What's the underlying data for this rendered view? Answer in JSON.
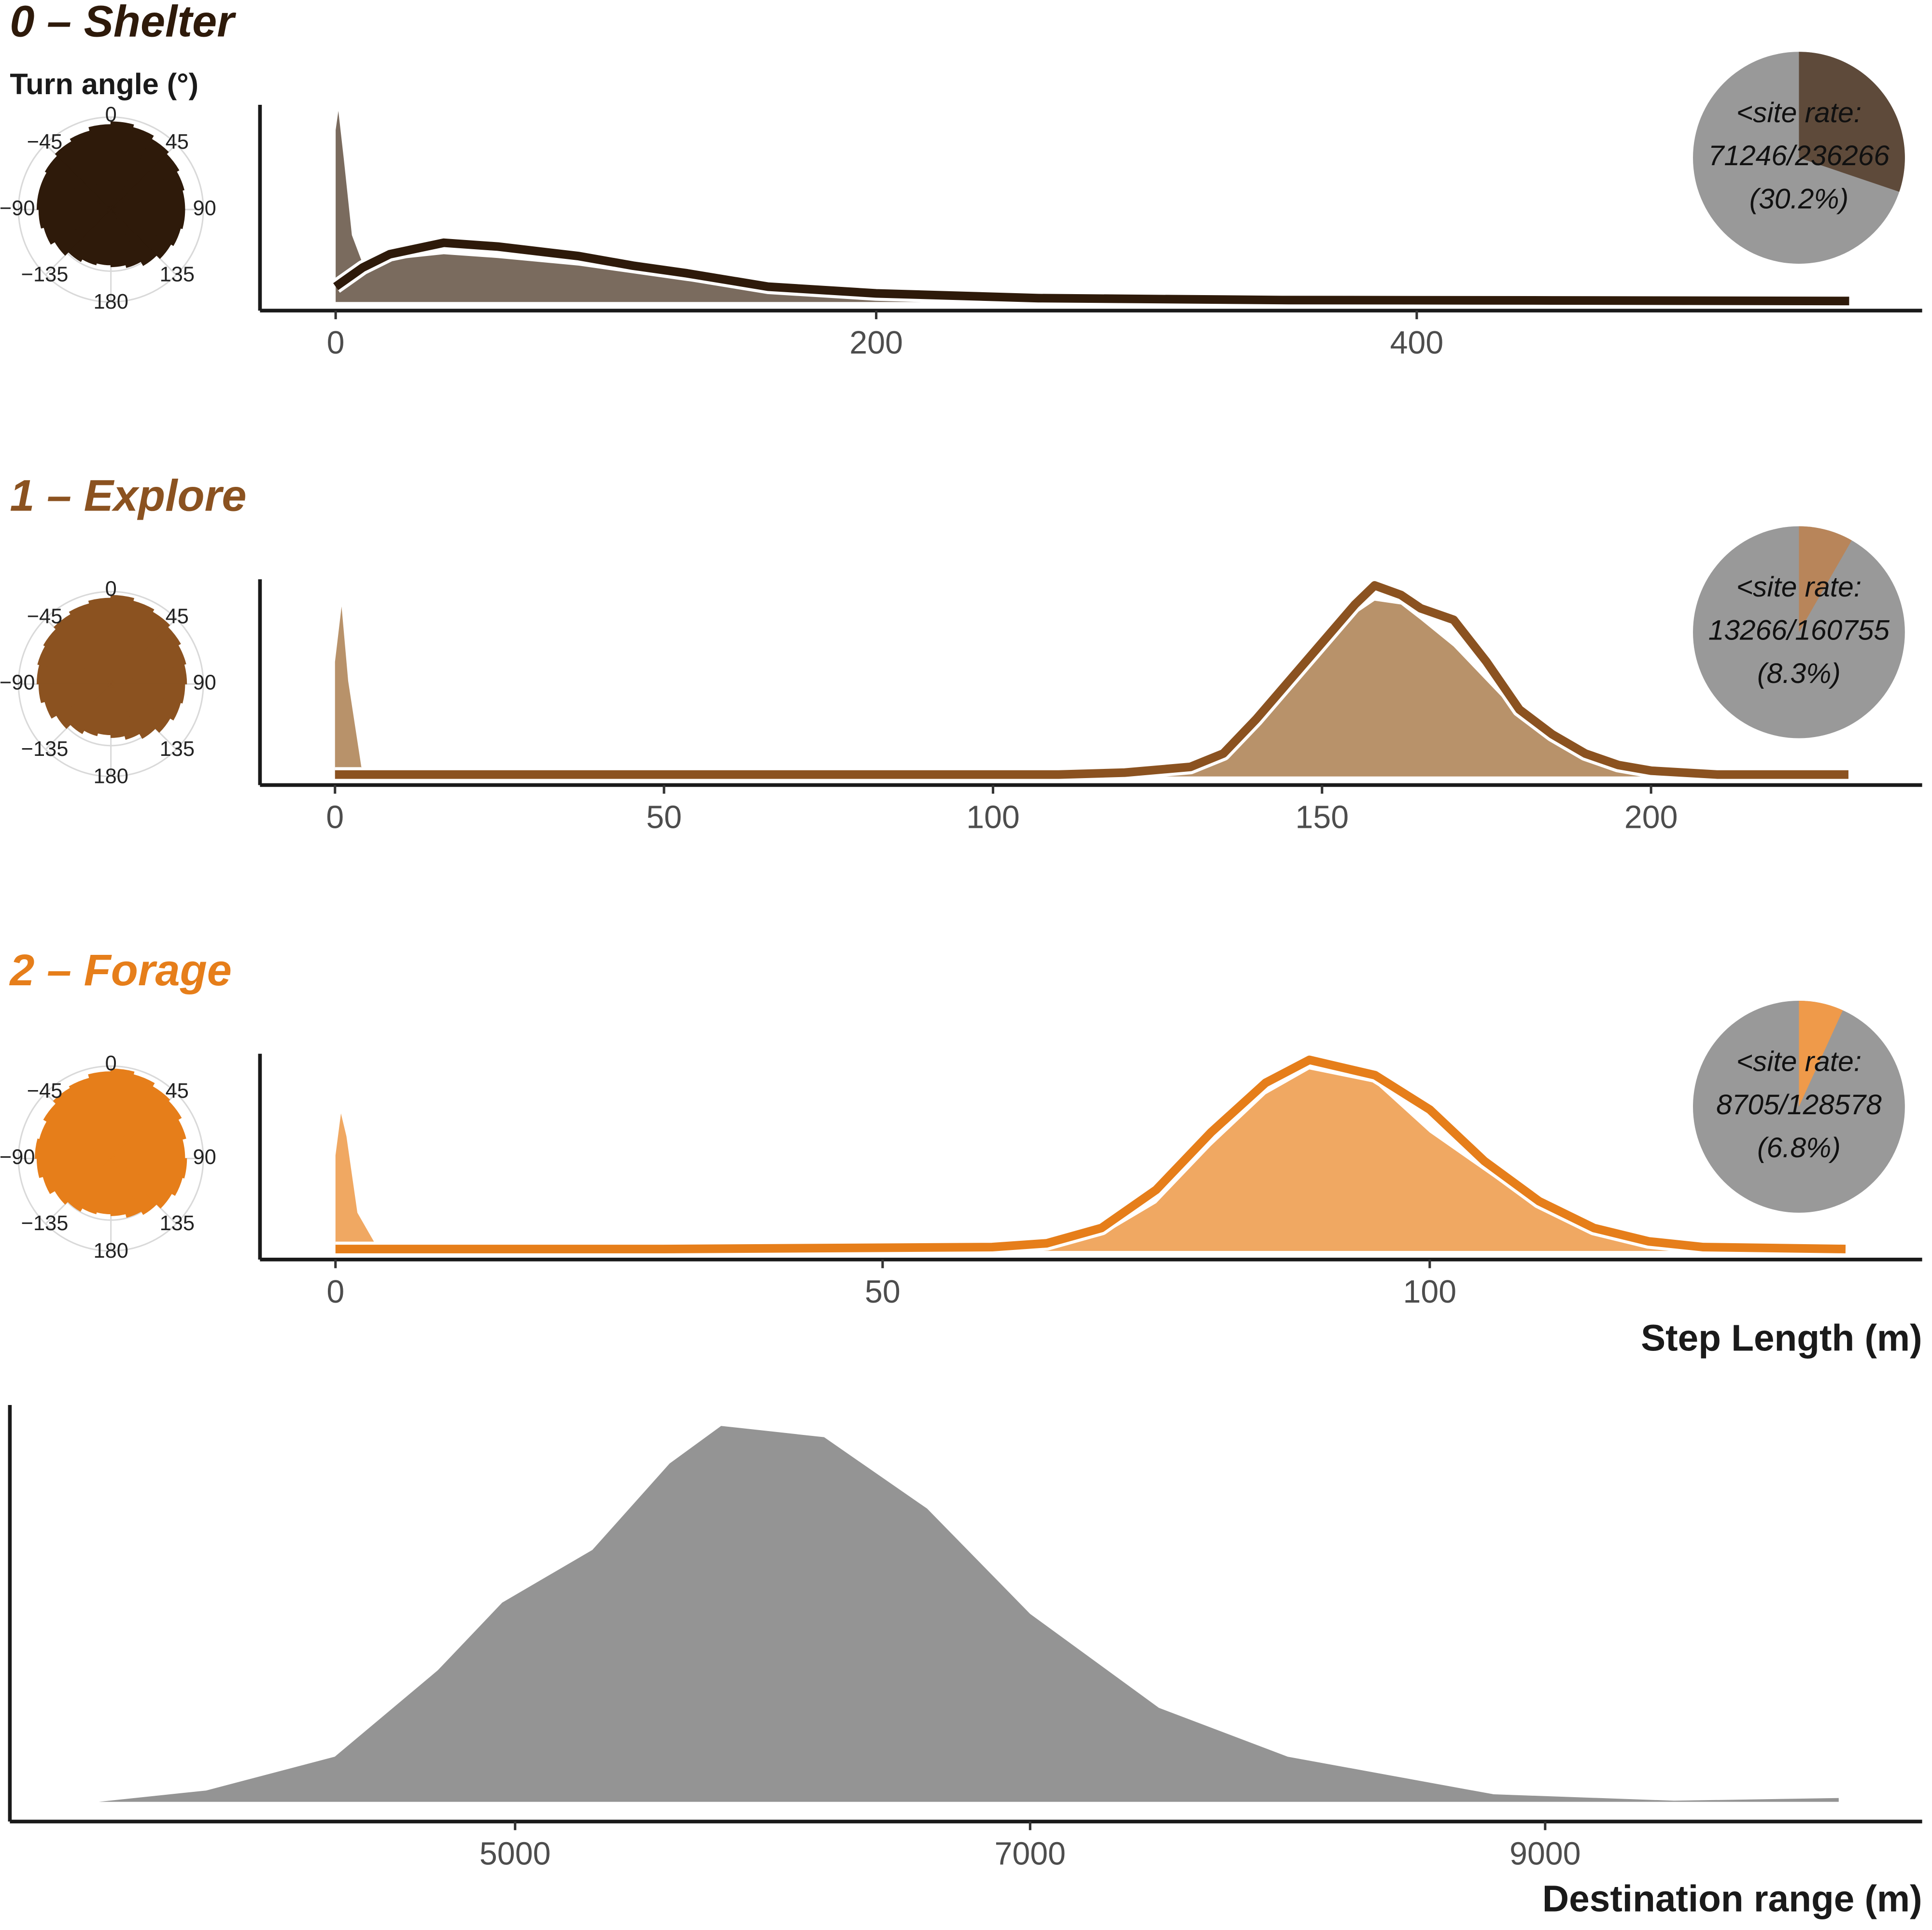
{
  "chart_data": [
    {
      "type": "density",
      "title": "0 – Shelter",
      "title_color": "#2e1a0a",
      "rose_label": "Turn angle (°)",
      "rose": {
        "color": "#2e1a0a",
        "rlim": [
          0,
          1
        ],
        "ticks": [
          0,
          45,
          90,
          135,
          180,
          {
            "value": -135,
            "label": "−135"
          },
          {
            "value": -90,
            "label": "−90"
          },
          {
            "value": -45,
            "label": "−45"
          }
        ],
        "values": [
          0.6,
          0.62,
          0.65,
          0.7,
          0.75,
          0.78,
          0.8,
          0.8,
          0.82,
          0.85,
          0.88,
          0.92,
          0.95,
          0.92,
          0.88,
          0.85,
          0.82,
          0.8,
          0.8,
          0.78,
          0.75,
          0.7,
          0.65,
          0.62
        ]
      },
      "x": [
        0,
        1,
        3,
        6,
        10,
        20,
        40,
        60,
        90,
        110,
        130,
        160,
        200,
        260,
        350,
        450,
        560
      ],
      "fill": {
        "color": "#7a6b5e",
        "values": [
          0.9,
          1.0,
          0.75,
          0.35,
          0.2,
          0.22,
          0.25,
          0.23,
          0.19,
          0.15,
          0.11,
          0.06,
          0.02,
          0.005,
          0,
          0,
          0
        ]
      },
      "line": {
        "color": "#2e1a0a",
        "values": [
          0.08,
          0.09,
          0.11,
          0.14,
          0.18,
          0.25,
          0.31,
          0.29,
          0.24,
          0.19,
          0.15,
          0.08,
          0.045,
          0.02,
          0.01,
          0.008,
          0.005
        ]
      },
      "xlim": [
        -28,
        587
      ],
      "xticks": [
        0,
        200,
        400
      ],
      "ylim": [
        0,
        1
      ],
      "pie": {
        "color": "#5e4a3a",
        "label": "<site rate:",
        "ratio": "71246/236266",
        "percent": {
          "value": 30.2,
          "label": "(30.2%)"
        }
      }
    },
    {
      "type": "density",
      "title": "1 – Explore",
      "title_color": "#8b5220",
      "rose": {
        "color": "#8b5220",
        "rlim": [
          0,
          1
        ],
        "ticks": [
          0,
          45,
          90,
          135,
          180,
          {
            "value": -135,
            "label": "−135"
          },
          {
            "value": -90,
            "label": "−90"
          },
          {
            "value": -45,
            "label": "−45"
          }
        ],
        "values": [
          0.55,
          0.58,
          0.62,
          0.68,
          0.74,
          0.78,
          0.8,
          0.82,
          0.84,
          0.87,
          0.9,
          0.93,
          0.96,
          0.93,
          0.9,
          0.87,
          0.84,
          0.82,
          0.8,
          0.78,
          0.74,
          0.68,
          0.62,
          0.58
        ]
      },
      "x": [
        0,
        1,
        2,
        4,
        8,
        60,
        110,
        120,
        130,
        135,
        140,
        145,
        150,
        155,
        158,
        162,
        165,
        170,
        175,
        180,
        185,
        190,
        195,
        200,
        210,
        230
      ],
      "fill": {
        "color": "#b8926a",
        "values": [
          0.6,
          0.89,
          0.5,
          0.05,
          0,
          0,
          0,
          0,
          0.02,
          0.08,
          0.25,
          0.45,
          0.65,
          0.85,
          0.92,
          0.9,
          0.82,
          0.68,
          0.5,
          0.32,
          0.2,
          0.1,
          0.05,
          0.02,
          0,
          0
        ]
      },
      "line": {
        "color": "#8b5220",
        "values": [
          0.01,
          0.01,
          0.01,
          0.01,
          0.01,
          0.01,
          0.01,
          0.02,
          0.05,
          0.12,
          0.3,
          0.5,
          0.7,
          0.9,
          1.0,
          0.95,
          0.88,
          0.82,
          0.6,
          0.35,
          0.22,
          0.12,
          0.06,
          0.03,
          0.01,
          0.01
        ]
      },
      "xlim": [
        -11.4,
        241.2
      ],
      "xticks": [
        0,
        50,
        100,
        150,
        200
      ],
      "ylim": [
        0,
        1
      ],
      "pie": {
        "color": "#b8855a",
        "label": "<site rate:",
        "ratio": "13266/160755",
        "percent": {
          "value": 8.3,
          "label": "(8.3%)"
        }
      }
    },
    {
      "type": "density",
      "title": "2 – Forage",
      "title_color": "#e67e1a",
      "rose": {
        "color": "#e67e1a",
        "rlim": [
          0,
          1
        ],
        "ticks": [
          0,
          45,
          90,
          135,
          180,
          {
            "value": -135,
            "label": "−135"
          },
          {
            "value": -90,
            "label": "−90"
          },
          {
            "value": -45,
            "label": "−45"
          }
        ],
        "values": [
          0.6,
          0.62,
          0.66,
          0.7,
          0.76,
          0.8,
          0.82,
          0.8,
          0.84,
          0.88,
          0.9,
          0.94,
          0.97,
          0.94,
          0.9,
          0.88,
          0.84,
          0.8,
          0.82,
          0.8,
          0.76,
          0.7,
          0.66,
          0.62
        ]
      },
      "x": [
        0,
        0.5,
        1,
        2,
        4,
        30,
        60,
        65,
        70,
        75,
        80,
        85,
        89,
        95,
        100,
        105,
        110,
        115,
        120,
        125,
        138
      ],
      "fill": {
        "color": "#f0a862",
        "values": [
          0.5,
          0.72,
          0.6,
          0.2,
          0,
          0,
          0,
          0.01,
          0.08,
          0.25,
          0.55,
          0.82,
          0.95,
          0.88,
          0.62,
          0.42,
          0.22,
          0.09,
          0.03,
          0,
          0
        ]
      },
      "line": {
        "color": "#e67e1a",
        "values": [
          0.01,
          0.01,
          0.01,
          0.01,
          0.01,
          0.01,
          0.02,
          0.04,
          0.12,
          0.32,
          0.62,
          0.88,
          1.0,
          0.92,
          0.74,
          0.47,
          0.26,
          0.12,
          0.05,
          0.02,
          0.01
        ]
      },
      "xlim": [
        -6.9,
        145
      ],
      "xticks": [
        0,
        50,
        100
      ],
      "ylim": [
        0,
        1
      ],
      "xlabel": "Step Length (m)",
      "pie": {
        "color": "#ef9a4a",
        "label": "<site rate:",
        "ratio": "8705/128578",
        "percent": {
          "value": 6.8,
          "label": "(6.8%)"
        }
      }
    },
    {
      "type": "area",
      "x": [
        3383,
        3800,
        4300,
        4700,
        4950,
        5300,
        5600,
        5800,
        6200,
        6600,
        7000,
        7500,
        8000,
        8400,
        8800,
        9500,
        10140
      ],
      "values": [
        0,
        0.03,
        0.12,
        0.35,
        0.53,
        0.67,
        0.9,
        1.0,
        0.97,
        0.78,
        0.5,
        0.25,
        0.12,
        0.07,
        0.02,
        0.003,
        0.01
      ],
      "color": "#949494",
      "xlim": [
        3038,
        10464
      ],
      "xticks": [
        5000,
        7000,
        9000
      ],
      "ylim": [
        0,
        1
      ],
      "xlabel": "Destination range (m)"
    }
  ]
}
